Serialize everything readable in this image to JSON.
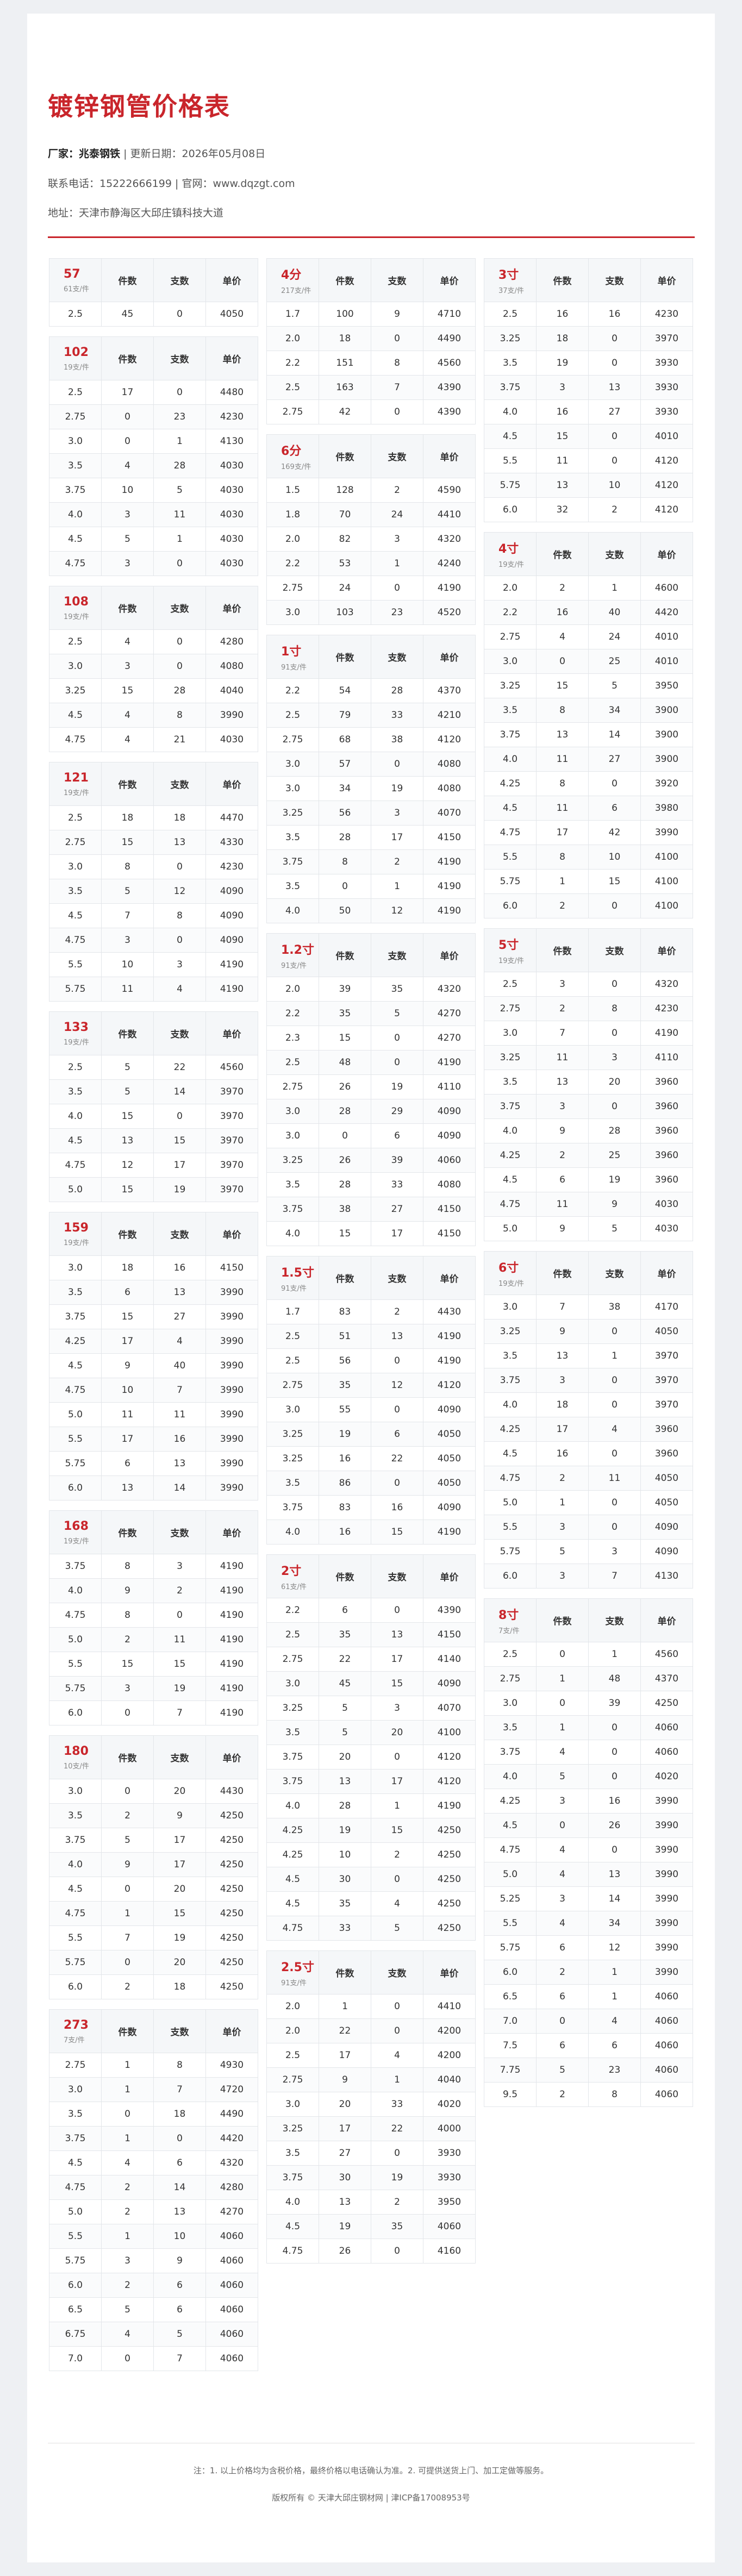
{
  "header": {
    "title": "镀锌钢管价格表",
    "manufacturer_label": "厂家：",
    "manufacturer": "兆泰钢铁",
    "update_text": " | 更新日期：2026年05月08日",
    "contact": "联系电话：15222666199 | 官网：www.dqzgt.com",
    "address": "地址：天津市静海区大邱庄镇科技大道"
  },
  "columns_label": {
    "count": "件数",
    "pieces": "支数",
    "price": "单价"
  },
  "col1": [
    {
      "name": "57",
      "sub": "61支/件",
      "rows": [
        [
          "2.5",
          "45",
          "0",
          "4050"
        ]
      ]
    },
    {
      "name": "102",
      "sub": "19支/件",
      "rows": [
        [
          "2.5",
          "17",
          "0",
          "4480"
        ],
        [
          "2.75",
          "0",
          "23",
          "4230"
        ],
        [
          "3.0",
          "0",
          "1",
          "4130"
        ],
        [
          "3.5",
          "4",
          "28",
          "4030"
        ],
        [
          "3.75",
          "10",
          "5",
          "4030"
        ],
        [
          "4.0",
          "3",
          "11",
          "4030"
        ],
        [
          "4.5",
          "5",
          "1",
          "4030"
        ],
        [
          "4.75",
          "3",
          "0",
          "4030"
        ]
      ]
    },
    {
      "name": "108",
      "sub": "19支/件",
      "rows": [
        [
          "2.5",
          "4",
          "0",
          "4280"
        ],
        [
          "3.0",
          "3",
          "0",
          "4080"
        ],
        [
          "3.25",
          "15",
          "28",
          "4040"
        ],
        [
          "4.5",
          "4",
          "8",
          "3990"
        ],
        [
          "4.75",
          "4",
          "21",
          "4030"
        ]
      ]
    },
    {
      "name": "121",
      "sub": "19支/件",
      "rows": [
        [
          "2.5",
          "18",
          "18",
          "4470"
        ],
        [
          "2.75",
          "15",
          "13",
          "4330"
        ],
        [
          "3.0",
          "8",
          "0",
          "4230"
        ],
        [
          "3.5",
          "5",
          "12",
          "4090"
        ],
        [
          "4.5",
          "7",
          "8",
          "4090"
        ],
        [
          "4.75",
          "3",
          "0",
          "4090"
        ],
        [
          "5.5",
          "10",
          "3",
          "4190"
        ],
        [
          "5.75",
          "11",
          "4",
          "4190"
        ]
      ]
    },
    {
      "name": "133",
      "sub": "19支/件",
      "rows": [
        [
          "2.5",
          "5",
          "22",
          "4560"
        ],
        [
          "3.5",
          "5",
          "14",
          "3970"
        ],
        [
          "4.0",
          "15",
          "0",
          "3970"
        ],
        [
          "4.5",
          "13",
          "15",
          "3970"
        ],
        [
          "4.75",
          "12",
          "17",
          "3970"
        ],
        [
          "5.0",
          "15",
          "19",
          "3970"
        ]
      ]
    },
    {
      "name": "159",
      "sub": "19支/件",
      "rows": [
        [
          "3.0",
          "18",
          "16",
          "4150"
        ],
        [
          "3.5",
          "6",
          "13",
          "3990"
        ],
        [
          "3.75",
          "15",
          "27",
          "3990"
        ],
        [
          "4.25",
          "17",
          "4",
          "3990"
        ],
        [
          "4.5",
          "9",
          "40",
          "3990"
        ],
        [
          "4.75",
          "10",
          "7",
          "3990"
        ],
        [
          "5.0",
          "11",
          "11",
          "3990"
        ],
        [
          "5.5",
          "17",
          "16",
          "3990"
        ],
        [
          "5.75",
          "6",
          "13",
          "3990"
        ],
        [
          "6.0",
          "13",
          "14",
          "3990"
        ]
      ]
    },
    {
      "name": "168",
      "sub": "19支/件",
      "rows": [
        [
          "3.75",
          "8",
          "3",
          "4190"
        ],
        [
          "4.0",
          "9",
          "2",
          "4190"
        ],
        [
          "4.75",
          "8",
          "0",
          "4190"
        ],
        [
          "5.0",
          "2",
          "11",
          "4190"
        ],
        [
          "5.5",
          "15",
          "15",
          "4190"
        ],
        [
          "5.75",
          "3",
          "19",
          "4190"
        ],
        [
          "6.0",
          "0",
          "7",
          "4190"
        ]
      ]
    },
    {
      "name": "180",
      "sub": "10支/件",
      "rows": [
        [
          "3.0",
          "0",
          "20",
          "4430"
        ],
        [
          "3.5",
          "2",
          "9",
          "4250"
        ],
        [
          "3.75",
          "5",
          "17",
          "4250"
        ],
        [
          "4.0",
          "9",
          "17",
          "4250"
        ],
        [
          "4.5",
          "0",
          "20",
          "4250"
        ],
        [
          "4.75",
          "1",
          "15",
          "4250"
        ],
        [
          "5.5",
          "7",
          "19",
          "4250"
        ],
        [
          "5.75",
          "0",
          "20",
          "4250"
        ],
        [
          "6.0",
          "2",
          "18",
          "4250"
        ]
      ]
    },
    {
      "name": "273",
      "sub": "7支/件",
      "rows": [
        [
          "2.75",
          "1",
          "8",
          "4930"
        ],
        [
          "3.0",
          "1",
          "7",
          "4720"
        ],
        [
          "3.5",
          "0",
          "18",
          "4490"
        ],
        [
          "3.75",
          "1",
          "0",
          "4420"
        ],
        [
          "4.5",
          "4",
          "6",
          "4320"
        ],
        [
          "4.75",
          "2",
          "14",
          "4280"
        ],
        [
          "5.0",
          "2",
          "13",
          "4270"
        ],
        [
          "5.5",
          "1",
          "10",
          "4060"
        ],
        [
          "5.75",
          "3",
          "9",
          "4060"
        ],
        [
          "6.0",
          "2",
          "6",
          "4060"
        ],
        [
          "6.5",
          "5",
          "6",
          "4060"
        ],
        [
          "6.75",
          "4",
          "5",
          "4060"
        ],
        [
          "7.0",
          "0",
          "7",
          "4060"
        ]
      ]
    }
  ],
  "col2": [
    {
      "name": "4分",
      "sub": "217支/件",
      "rows": [
        [
          "1.7",
          "100",
          "9",
          "4710"
        ],
        [
          "2.0",
          "18",
          "0",
          "4490"
        ],
        [
          "2.2",
          "151",
          "8",
          "4560"
        ],
        [
          "2.5",
          "163",
          "7",
          "4390"
        ],
        [
          "2.75",
          "42",
          "0",
          "4390"
        ]
      ]
    },
    {
      "name": "6分",
      "sub": "169支/件",
      "rows": [
        [
          "1.5",
          "128",
          "2",
          "4590"
        ],
        [
          "1.8",
          "70",
          "24",
          "4410"
        ],
        [
          "2.0",
          "82",
          "3",
          "4320"
        ],
        [
          "2.2",
          "53",
          "1",
          "4240"
        ],
        [
          "2.75",
          "24",
          "0",
          "4190"
        ],
        [
          "3.0",
          "103",
          "23",
          "4520"
        ]
      ]
    },
    {
      "name": "1寸",
      "sub": "91支/件",
      "rows": [
        [
          "2.2",
          "54",
          "28",
          "4370"
        ],
        [
          "2.5",
          "79",
          "33",
          "4210"
        ],
        [
          "2.75",
          "68",
          "38",
          "4120"
        ],
        [
          "3.0",
          "57",
          "0",
          "4080"
        ],
        [
          "3.0",
          "34",
          "19",
          "4080"
        ],
        [
          "3.25",
          "56",
          "3",
          "4070"
        ],
        [
          "3.5",
          "28",
          "17",
          "4150"
        ],
        [
          "3.75",
          "8",
          "2",
          "4190"
        ],
        [
          "3.5",
          "0",
          "1",
          "4190"
        ],
        [
          "4.0",
          "50",
          "12",
          "4190"
        ]
      ]
    },
    {
      "name": "1.2寸",
      "sub": "91支/件",
      "rows": [
        [
          "2.0",
          "39",
          "35",
          "4320"
        ],
        [
          "2.2",
          "35",
          "5",
          "4270"
        ],
        [
          "2.3",
          "15",
          "0",
          "4270"
        ],
        [
          "2.5",
          "48",
          "0",
          "4190"
        ],
        [
          "2.75",
          "26",
          "19",
          "4110"
        ],
        [
          "3.0",
          "28",
          "29",
          "4090"
        ],
        [
          "3.0",
          "0",
          "6",
          "4090"
        ],
        [
          "3.25",
          "26",
          "39",
          "4060"
        ],
        [
          "3.5",
          "28",
          "33",
          "4080"
        ],
        [
          "3.75",
          "38",
          "27",
          "4150"
        ],
        [
          "4.0",
          "15",
          "17",
          "4150"
        ]
      ]
    },
    {
      "name": "1.5寸",
      "sub": "91支/件",
      "rows": [
        [
          "1.7",
          "83",
          "2",
          "4430"
        ],
        [
          "2.5",
          "51",
          "13",
          "4190"
        ],
        [
          "2.5",
          "56",
          "0",
          "4190"
        ],
        [
          "2.75",
          "35",
          "12",
          "4120"
        ],
        [
          "3.0",
          "55",
          "0",
          "4090"
        ],
        [
          "3.25",
          "19",
          "6",
          "4050"
        ],
        [
          "3.25",
          "16",
          "22",
          "4050"
        ],
        [
          "3.5",
          "86",
          "0",
          "4050"
        ],
        [
          "3.75",
          "83",
          "16",
          "4090"
        ],
        [
          "4.0",
          "16",
          "15",
          "4190"
        ]
      ]
    },
    {
      "name": "2寸",
      "sub": "61支/件",
      "rows": [
        [
          "2.2",
          "6",
          "0",
          "4390"
        ],
        [
          "2.5",
          "35",
          "13",
          "4150"
        ],
        [
          "2.75",
          "22",
          "17",
          "4140"
        ],
        [
          "3.0",
          "45",
          "15",
          "4090"
        ],
        [
          "3.25",
          "5",
          "3",
          "4070"
        ],
        [
          "3.5",
          "5",
          "20",
          "4100"
        ],
        [
          "3.75",
          "20",
          "0",
          "4120"
        ],
        [
          "3.75",
          "13",
          "17",
          "4120"
        ],
        [
          "4.0",
          "28",
          "1",
          "4190"
        ],
        [
          "4.25",
          "19",
          "15",
          "4250"
        ],
        [
          "4.25",
          "10",
          "2",
          "4250"
        ],
        [
          "4.5",
          "30",
          "0",
          "4250"
        ],
        [
          "4.5",
          "35",
          "4",
          "4250"
        ],
        [
          "4.75",
          "33",
          "5",
          "4250"
        ]
      ]
    },
    {
      "name": "2.5寸",
      "sub": "91支/件",
      "rows": [
        [
          "2.0",
          "1",
          "0",
          "4410"
        ],
        [
          "2.0",
          "22",
          "0",
          "4200"
        ],
        [
          "2.5",
          "17",
          "4",
          "4200"
        ],
        [
          "2.75",
          "9",
          "1",
          "4040"
        ],
        [
          "3.0",
          "20",
          "33",
          "4020"
        ],
        [
          "3.25",
          "17",
          "22",
          "4000"
        ],
        [
          "3.5",
          "27",
          "0",
          "3930"
        ],
        [
          "3.75",
          "30",
          "19",
          "3930"
        ],
        [
          "4.0",
          "13",
          "2",
          "3950"
        ],
        [
          "4.5",
          "19",
          "35",
          "4060"
        ],
        [
          "4.75",
          "26",
          "0",
          "4160"
        ]
      ]
    }
  ],
  "col3": [
    {
      "name": "3寸",
      "sub": "37支/件",
      "rows": [
        [
          "2.5",
          "16",
          "16",
          "4230"
        ],
        [
          "3.25",
          "18",
          "0",
          "3970"
        ],
        [
          "3.5",
          "19",
          "0",
          "3930"
        ],
        [
          "3.75",
          "3",
          "13",
          "3930"
        ],
        [
          "4.0",
          "16",
          "27",
          "3930"
        ],
        [
          "4.5",
          "15",
          "0",
          "4010"
        ],
        [
          "5.5",
          "11",
          "0",
          "4120"
        ],
        [
          "5.75",
          "13",
          "10",
          "4120"
        ],
        [
          "6.0",
          "32",
          "2",
          "4120"
        ]
      ]
    },
    {
      "name": "4寸",
      "sub": "19支/件",
      "rows": [
        [
          "2.0",
          "2",
          "1",
          "4600"
        ],
        [
          "2.2",
          "16",
          "40",
          "4420"
        ],
        [
          "2.75",
          "4",
          "24",
          "4010"
        ],
        [
          "3.0",
          "0",
          "25",
          "4010"
        ],
        [
          "3.25",
          "15",
          "5",
          "3950"
        ],
        [
          "3.5",
          "8",
          "34",
          "3900"
        ],
        [
          "3.75",
          "13",
          "14",
          "3900"
        ],
        [
          "4.0",
          "11",
          "27",
          "3900"
        ],
        [
          "4.25",
          "8",
          "0",
          "3920"
        ],
        [
          "4.5",
          "11",
          "6",
          "3980"
        ],
        [
          "4.75",
          "17",
          "42",
          "3990"
        ],
        [
          "5.5",
          "8",
          "10",
          "4100"
        ],
        [
          "5.75",
          "1",
          "15",
          "4100"
        ],
        [
          "6.0",
          "2",
          "0",
          "4100"
        ]
      ]
    },
    {
      "name": "5寸",
      "sub": "19支/件",
      "rows": [
        [
          "2.5",
          "3",
          "0",
          "4320"
        ],
        [
          "2.75",
          "2",
          "8",
          "4230"
        ],
        [
          "3.0",
          "7",
          "0",
          "4190"
        ],
        [
          "3.25",
          "11",
          "3",
          "4110"
        ],
        [
          "3.5",
          "13",
          "20",
          "3960"
        ],
        [
          "3.75",
          "3",
          "0",
          "3960"
        ],
        [
          "4.0",
          "9",
          "28",
          "3960"
        ],
        [
          "4.25",
          "2",
          "25",
          "3960"
        ],
        [
          "4.5",
          "6",
          "19",
          "3960"
        ],
        [
          "4.75",
          "11",
          "9",
          "4030"
        ],
        [
          "5.0",
          "9",
          "5",
          "4030"
        ]
      ]
    },
    {
      "name": "6寸",
      "sub": "19支/件",
      "rows": [
        [
          "3.0",
          "7",
          "38",
          "4170"
        ],
        [
          "3.25",
          "9",
          "0",
          "4050"
        ],
        [
          "3.5",
          "13",
          "1",
          "3970"
        ],
        [
          "3.75",
          "3",
          "0",
          "3970"
        ],
        [
          "4.0",
          "18",
          "0",
          "3970"
        ],
        [
          "4.25",
          "17",
          "4",
          "3960"
        ],
        [
          "4.5",
          "16",
          "0",
          "3960"
        ],
        [
          "4.75",
          "2",
          "11",
          "4050"
        ],
        [
          "5.0",
          "1",
          "0",
          "4050"
        ],
        [
          "5.5",
          "3",
          "0",
          "4090"
        ],
        [
          "5.75",
          "5",
          "3",
          "4090"
        ],
        [
          "6.0",
          "3",
          "7",
          "4130"
        ]
      ]
    },
    {
      "name": "8寸",
      "sub": "7支/件",
      "rows": [
        [
          "2.5",
          "0",
          "1",
          "4560"
        ],
        [
          "2.75",
          "1",
          "48",
          "4370"
        ],
        [
          "3.0",
          "0",
          "39",
          "4250"
        ],
        [
          "3.5",
          "1",
          "0",
          "4060"
        ],
        [
          "3.75",
          "4",
          "0",
          "4060"
        ],
        [
          "4.0",
          "5",
          "0",
          "4020"
        ],
        [
          "4.25",
          "3",
          "16",
          "3990"
        ],
        [
          "4.5",
          "0",
          "26",
          "3990"
        ],
        [
          "4.75",
          "4",
          "0",
          "3990"
        ],
        [
          "5.0",
          "4",
          "13",
          "3990"
        ],
        [
          "5.25",
          "3",
          "14",
          "3990"
        ],
        [
          "5.5",
          "4",
          "34",
          "3990"
        ],
        [
          "5.75",
          "6",
          "12",
          "3990"
        ],
        [
          "6.0",
          "2",
          "1",
          "3990"
        ],
        [
          "6.5",
          "6",
          "1",
          "4060"
        ],
        [
          "7.0",
          "0",
          "4",
          "4060"
        ],
        [
          "7.5",
          "6",
          "6",
          "4060"
        ],
        [
          "7.75",
          "5",
          "23",
          "4060"
        ],
        [
          "9.5",
          "2",
          "8",
          "4060"
        ]
      ]
    }
  ],
  "footer": {
    "note": "注：1. 以上价格均为含税价格，最终价格以电话确认为准。2. 可提供送货上门、加工定做等服务。",
    "copyright": "版权所有 © 天津大邱庄钢材网 | 津ICP备17008953号"
  }
}
